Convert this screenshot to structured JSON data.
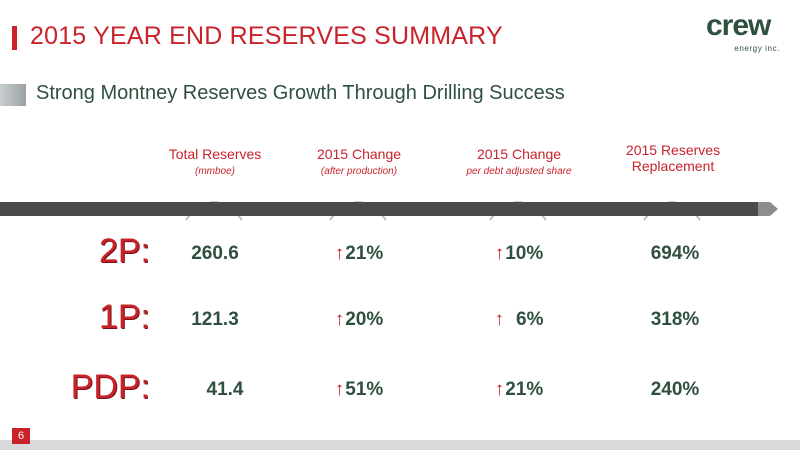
{
  "title": "2015 YEAR END RESERVES SUMMARY",
  "subtitle": "Strong Montney Reserves Growth Through Drilling Success",
  "logo": {
    "word": "crew",
    "sub": "energy inc."
  },
  "columns": [
    {
      "title": "Total Reserves",
      "sub": "(mmboe)"
    },
    {
      "title": "2015 Change",
      "sub": "(after production)"
    },
    {
      "title": "2015 Change",
      "sub": "per debt adjusted share"
    },
    {
      "title": "2015 Reserves Replacement",
      "sub": ""
    }
  ],
  "rows": [
    {
      "label": "2P:",
      "total": "260.6",
      "change": "21%",
      "share": "10%",
      "replacement": "694%"
    },
    {
      "label": "1P:",
      "total": "121.3",
      "change": "20%",
      "share": "6%",
      "replacement": "318%"
    },
    {
      "label": "PDP:",
      "total": "41.4",
      "change": "51%",
      "share": "21%",
      "replacement": "240%"
    }
  ],
  "page_number": "6",
  "colors": {
    "accent": "#c8232b",
    "text": "#2f4f3f",
    "timeline": "#4a4a4a"
  }
}
